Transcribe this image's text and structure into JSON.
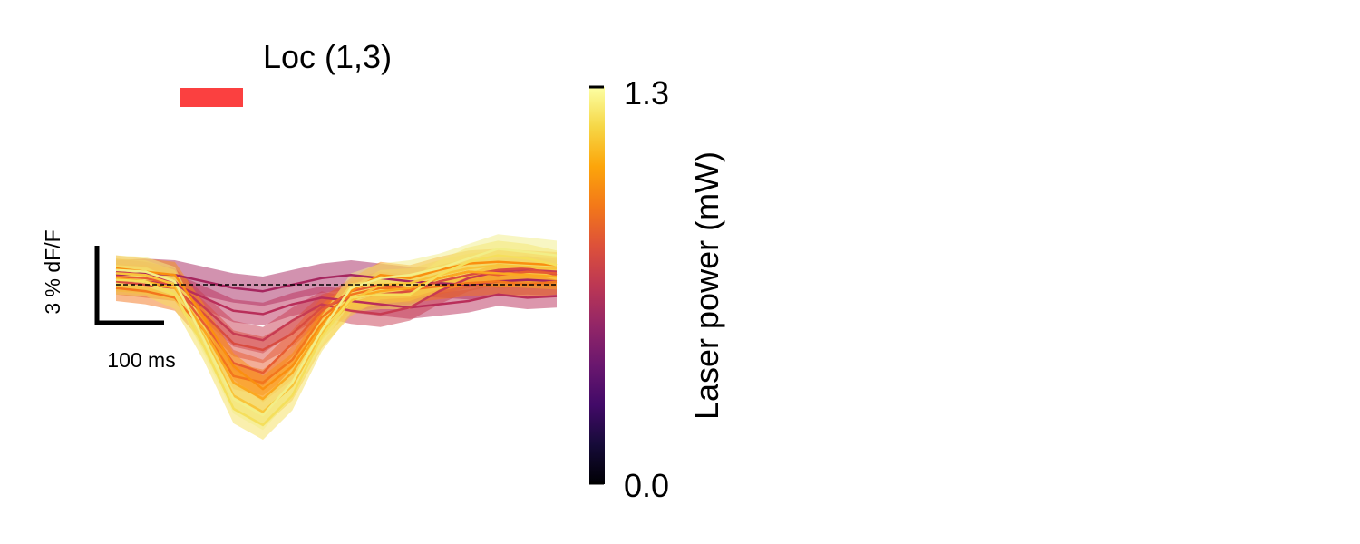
{
  "chart_data": {
    "type": "line",
    "title": "Loc (1,3)",
    "stimulus_bar_color": "#fb4040",
    "baseline_style": "dashed",
    "scalebar": {
      "y_label": "3 % dF/F",
      "x_label": "100 ms"
    },
    "colorbar": {
      "label": "Laser power (mW)",
      "colormap": "inferno",
      "ticks": [
        "0.0",
        "1.3"
      ],
      "range": [
        0.0,
        1.3
      ]
    },
    "x_unit": "ms",
    "y_unit": "% dF/F",
    "x": [
      0,
      40,
      80,
      120,
      160,
      200,
      240,
      280,
      320,
      360,
      400,
      440,
      480,
      520,
      560,
      600
    ],
    "series": [
      {
        "power": 0.72,
        "color": "#a6265f",
        "values": [
          0.6,
          0.7,
          0.6,
          0.2,
          -0.2,
          -0.4,
          0.0,
          0.4,
          0.6,
          0.4,
          0.2,
          0.1,
          0.0,
          0.2,
          0.3,
          0.2
        ],
        "error": 0.9
      },
      {
        "power": 0.78,
        "color": "#b92e5a",
        "values": [
          0.3,
          0.2,
          0.0,
          -0.8,
          -1.6,
          -1.8,
          -1.2,
          -0.8,
          -1.0,
          -1.2,
          -1.4,
          -1.2,
          -1.0,
          -0.6,
          -0.8,
          -0.7
        ],
        "error": 0.7
      },
      {
        "power": 0.84,
        "color": "#c73b52",
        "values": [
          0.8,
          0.6,
          0.2,
          -1.4,
          -3.0,
          -3.4,
          -2.2,
          -1.2,
          -1.6,
          -1.8,
          -1.4,
          -0.4,
          0.4,
          0.8,
          0.9,
          0.8
        ],
        "error": 0.8
      },
      {
        "power": 0.9,
        "color": "#d94c40",
        "values": [
          0.2,
          0.0,
          -0.2,
          -1.8,
          -3.6,
          -4.0,
          -3.0,
          -1.4,
          -0.8,
          -0.6,
          -0.4,
          0.2,
          0.6,
          0.9,
          1.0,
          0.6
        ],
        "error": 0.8
      },
      {
        "power": 0.96,
        "color": "#e85d32",
        "values": [
          0.5,
          0.4,
          0.0,
          -2.4,
          -4.8,
          -5.4,
          -3.6,
          -1.6,
          -0.4,
          0.0,
          -0.2,
          0.4,
          0.8,
          0.6,
          0.8,
          0.7
        ],
        "error": 0.8
      },
      {
        "power": 1.02,
        "color": "#f3761d",
        "values": [
          -0.2,
          -0.4,
          -0.8,
          -2.8,
          -5.6,
          -6.0,
          -4.6,
          -2.0,
          -0.6,
          -0.2,
          -0.3,
          -0.1,
          0.1,
          0.2,
          0.0,
          0.2
        ],
        "error": 0.8
      },
      {
        "power": 1.08,
        "color": "#fa8f10",
        "values": [
          1.0,
          0.8,
          0.6,
          -2.0,
          -5.0,
          -6.4,
          -5.0,
          -2.4,
          -0.4,
          0.6,
          0.4,
          0.9,
          1.3,
          1.4,
          1.3,
          1.2
        ],
        "error": 0.8
      },
      {
        "power": 1.14,
        "color": "#fba820",
        "values": [
          0.4,
          0.2,
          -0.2,
          -2.8,
          -6.0,
          -7.0,
          -5.4,
          -2.6,
          -0.8,
          -0.4,
          -0.2,
          0.4,
          0.8,
          0.7,
          0.6,
          0.5
        ],
        "error": 0.8
      },
      {
        "power": 1.2,
        "color": "#f9c43a",
        "values": [
          0.7,
          0.6,
          0.0,
          -3.2,
          -6.8,
          -7.8,
          -6.2,
          -3.0,
          -1.0,
          0.0,
          0.1,
          0.6,
          1.0,
          1.2,
          1.1,
          1.0
        ],
        "error": 0.9
      },
      {
        "power": 1.26,
        "color": "#f5df5c",
        "values": [
          0.3,
          0.2,
          -0.6,
          -3.8,
          -7.6,
          -8.6,
          -6.8,
          -3.2,
          -0.8,
          -0.6,
          -0.6,
          0.6,
          1.4,
          1.8,
          1.6,
          1.2
        ],
        "error": 0.9
      },
      {
        "power": 1.3,
        "color": "#f2ee88",
        "values": [
          0.9,
          0.8,
          0.2,
          -3.4,
          -7.0,
          -8.0,
          -6.0,
          -2.8,
          -0.2,
          0.4,
          0.6,
          1.0,
          1.6,
          2.2,
          2.0,
          1.8
        ],
        "error": 0.9
      }
    ]
  }
}
